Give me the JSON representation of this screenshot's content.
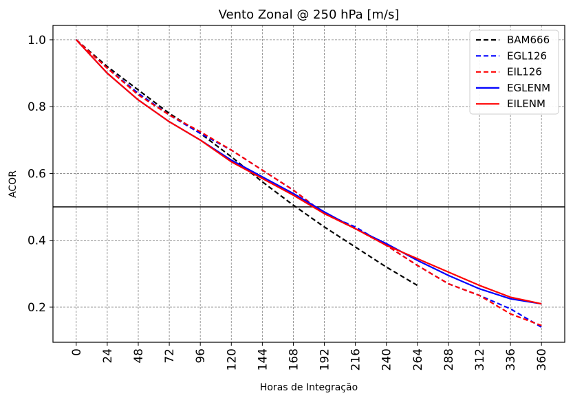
{
  "chart_data": {
    "type": "line",
    "title": "Vento Zonal @ 250 hPa [m/s]",
    "xlabel": "Horas de Integração",
    "ylabel": "ACOR",
    "x": [
      0,
      24,
      48,
      72,
      96,
      120,
      144,
      168,
      192,
      216,
      240,
      264,
      288,
      312,
      336,
      360
    ],
    "xticks": [
      "0",
      "24",
      "48",
      "72",
      "96",
      "120",
      "144",
      "168",
      "192",
      "216",
      "240",
      "264",
      "288",
      "312",
      "336",
      "360"
    ],
    "yticks": [
      "0.2",
      "0.4",
      "0.6",
      "0.8",
      "1.0"
    ],
    "ytick_values": [
      0.2,
      0.4,
      0.6,
      0.8,
      1.0
    ],
    "xlim": [
      -18,
      378
    ],
    "ylim": [
      0.095,
      1.043
    ],
    "grid": true,
    "legend_position": "top-right",
    "reference_line": {
      "y": 0.5,
      "color": "#000000"
    },
    "series": [
      {
        "name": "BAM666",
        "color": "#000000",
        "style": "dashed",
        "x": [
          0,
          24,
          48,
          72,
          96,
          120,
          144,
          168,
          192,
          216,
          240,
          264
        ],
        "values": [
          1.0,
          0.92,
          0.85,
          0.78,
          0.72,
          0.65,
          0.575,
          0.505,
          0.44,
          0.38,
          0.32,
          0.265
        ]
      },
      {
        "name": "EGL126",
        "color": "#0000ff",
        "style": "dashed",
        "x": [
          0,
          24,
          48,
          72,
          96,
          120,
          144,
          168,
          192,
          216,
          240,
          264,
          288,
          312,
          336,
          360
        ],
        "values": [
          1.0,
          0.915,
          0.84,
          0.775,
          0.72,
          0.67,
          0.61,
          0.55,
          0.48,
          0.44,
          0.385,
          0.325,
          0.27,
          0.235,
          0.195,
          0.14
        ]
      },
      {
        "name": "EIL126",
        "color": "#ff0000",
        "style": "dashed",
        "x": [
          0,
          24,
          48,
          72,
          96,
          120,
          144,
          168,
          192,
          216,
          240,
          264,
          288,
          312,
          336,
          360
        ],
        "values": [
          1.0,
          0.915,
          0.835,
          0.775,
          0.725,
          0.67,
          0.61,
          0.55,
          0.48,
          0.435,
          0.385,
          0.325,
          0.27,
          0.235,
          0.18,
          0.145
        ]
      },
      {
        "name": "EGLENM",
        "color": "#0000ff",
        "style": "solid",
        "x": [
          0,
          24,
          48,
          72,
          96,
          120,
          144,
          168,
          192,
          216,
          240,
          264,
          288,
          312,
          336,
          360
        ],
        "values": [
          1.0,
          0.9,
          0.82,
          0.755,
          0.7,
          0.64,
          0.59,
          0.54,
          0.485,
          0.435,
          0.39,
          0.34,
          0.295,
          0.255,
          0.225,
          0.21
        ]
      },
      {
        "name": "EILENM",
        "color": "#ff0000",
        "style": "solid",
        "x": [
          0,
          24,
          48,
          72,
          96,
          120,
          144,
          168,
          192,
          216,
          240,
          264,
          288,
          312,
          336,
          360
        ],
        "values": [
          1.0,
          0.9,
          0.82,
          0.755,
          0.7,
          0.635,
          0.585,
          0.535,
          0.48,
          0.435,
          0.385,
          0.345,
          0.305,
          0.265,
          0.23,
          0.21
        ]
      }
    ]
  }
}
